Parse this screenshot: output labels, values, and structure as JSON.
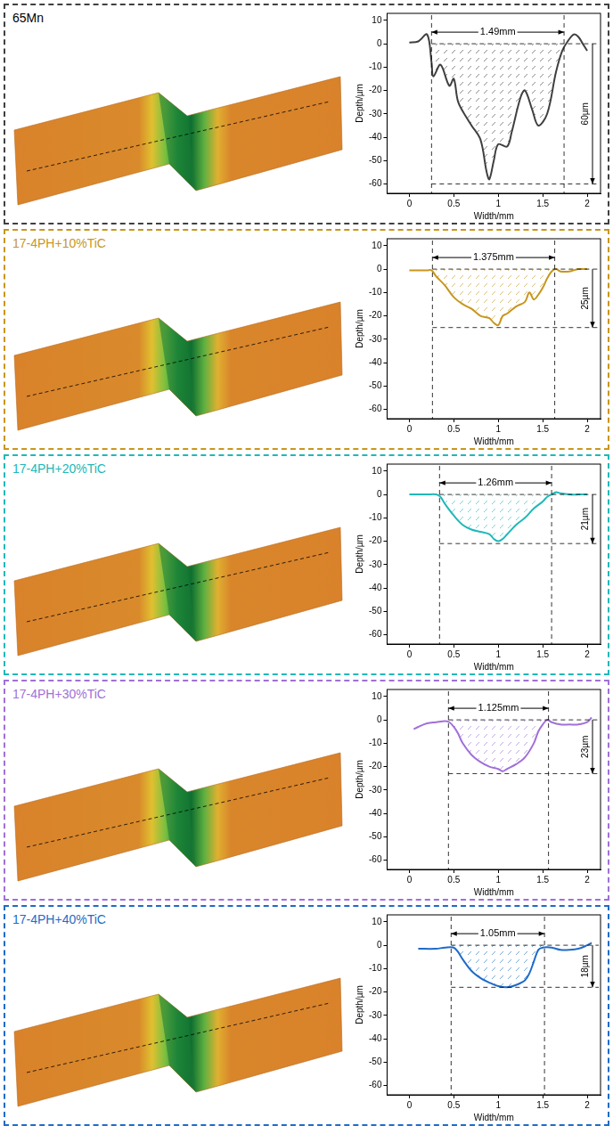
{
  "chart_data": [
    {
      "type": "line",
      "title": "65Mn",
      "color": "#404040",
      "x": [
        0,
        0.1,
        0.2,
        0.25,
        0.27,
        0.35,
        0.45,
        0.5,
        0.55,
        0.65,
        0.7,
        0.8,
        0.87,
        0.9,
        0.95,
        1.0,
        1.1,
        1.15,
        1.25,
        1.3,
        1.38,
        1.45,
        1.55,
        1.65,
        1.72,
        1.78,
        1.85,
        1.9,
        1.95,
        2.0
      ],
      "values": [
        0.5,
        1,
        4,
        -8,
        -14,
        -9,
        -18,
        -15,
        -25,
        -32,
        -35,
        -41,
        -55,
        -58,
        -50,
        -43,
        -44,
        -38,
        -23,
        -20,
        -28,
        -35,
        -30,
        -12,
        -3,
        1,
        4,
        3,
        0,
        -3
      ],
      "xlim": [
        -0.25,
        2.15
      ],
      "ylim": [
        -64,
        13
      ],
      "xticks": [
        0,
        0.5,
        1,
        1.5,
        2
      ],
      "yticks": [
        10,
        0,
        -10,
        -20,
        -30,
        -40,
        -50,
        -60
      ],
      "xlabel": "Width/mm",
      "ylabel": "Depth/µm",
      "annotations": {
        "width": {
          "label": "1.49mm",
          "from": 0.25,
          "to": 1.74
        },
        "depth": {
          "label": "60µm",
          "from": 0,
          "to": -60
        }
      }
    },
    {
      "type": "line",
      "title": "17-4PH+10%TiC",
      "color": "#c8961e",
      "x": [
        0,
        0.1,
        0.2,
        0.25,
        0.3,
        0.4,
        0.5,
        0.6,
        0.7,
        0.8,
        0.9,
        0.95,
        1.0,
        1.05,
        1.1,
        1.2,
        1.3,
        1.35,
        1.4,
        1.45,
        1.5,
        1.55,
        1.6,
        1.65,
        1.7,
        1.8,
        1.9,
        2.0
      ],
      "values": [
        -0.5,
        -0.5,
        -0.5,
        -0.5,
        -3,
        -7,
        -12,
        -15,
        -17,
        -20,
        -21,
        -23,
        -24,
        -20,
        -19,
        -16,
        -14,
        -10,
        -13,
        -11,
        -8,
        -4,
        -1,
        0,
        -1,
        -1,
        0,
        0
      ],
      "xlim": [
        -0.25,
        2.15
      ],
      "ylim": [
        -64,
        13
      ],
      "xticks": [
        0,
        0.5,
        1,
        1.5,
        2
      ],
      "yticks": [
        10,
        0,
        -10,
        -20,
        -30,
        -40,
        -50,
        -60
      ],
      "xlabel": "Width/mm",
      "ylabel": "Depth/µm",
      "annotations": {
        "width": {
          "label": "1.375mm",
          "from": 0.26,
          "to": 1.635
        },
        "depth": {
          "label": "25µm",
          "from": 0,
          "to": -25
        }
      }
    },
    {
      "type": "line",
      "title": "17-4PH+20%TiC",
      "color": "#20b8b8",
      "x": [
        0,
        0.1,
        0.2,
        0.3,
        0.35,
        0.4,
        0.5,
        0.6,
        0.7,
        0.8,
        0.9,
        0.95,
        1.0,
        1.05,
        1.1,
        1.2,
        1.3,
        1.4,
        1.5,
        1.55,
        1.6,
        1.65,
        1.7,
        1.8,
        1.9,
        2.0
      ],
      "values": [
        0,
        0,
        0,
        0,
        -1,
        -4,
        -9,
        -13,
        -15,
        -16,
        -17,
        -19,
        -20,
        -19,
        -17,
        -13,
        -10,
        -6,
        -3,
        -1,
        0,
        1,
        0.5,
        0,
        0,
        0
      ],
      "xlim": [
        -0.25,
        2.15
      ],
      "ylim": [
        -64,
        13
      ],
      "xticks": [
        0,
        0.5,
        1,
        1.5,
        2
      ],
      "yticks": [
        10,
        0,
        -10,
        -20,
        -30,
        -40,
        -50,
        -60
      ],
      "xlabel": "Width/mm",
      "ylabel": "Depth/µm",
      "annotations": {
        "width": {
          "label": "1.26mm",
          "from": 0.34,
          "to": 1.6
        },
        "depth": {
          "label": "21µm",
          "from": 0,
          "to": -21
        }
      }
    },
    {
      "type": "line",
      "title": "17-4PH+30%TiC",
      "color": "#a070d8",
      "x": [
        0.05,
        0.1,
        0.2,
        0.3,
        0.4,
        0.45,
        0.5,
        0.55,
        0.6,
        0.7,
        0.8,
        0.9,
        1.0,
        1.05,
        1.1,
        1.2,
        1.3,
        1.4,
        1.45,
        1.5,
        1.55,
        1.6,
        1.7,
        1.8,
        1.9,
        2.0,
        2.05
      ],
      "values": [
        -4,
        -3,
        -1.5,
        -1,
        -0.5,
        -1,
        -3,
        -6,
        -10,
        -15,
        -18,
        -20,
        -21,
        -22,
        -21,
        -19,
        -16,
        -10,
        -5,
        -2,
        0,
        -1,
        -2,
        -2,
        -2,
        -1,
        1
      ],
      "xlim": [
        -0.25,
        2.15
      ],
      "ylim": [
        -64,
        13
      ],
      "xticks": [
        0,
        0.5,
        1,
        1.5,
        2
      ],
      "yticks": [
        10,
        0,
        -10,
        -20,
        -30,
        -40,
        -50,
        -60
      ],
      "xlabel": "Width/mm",
      "ylabel": "Depth/µm",
      "annotations": {
        "width": {
          "label": "1.125mm",
          "from": 0.44,
          "to": 1.565
        },
        "depth": {
          "label": "23µm",
          "from": 0,
          "to": -23
        }
      }
    },
    {
      "type": "line",
      "title": "17-4PH+40%TiC",
      "color": "#1e6bc8",
      "x": [
        0.1,
        0.3,
        0.4,
        0.5,
        0.55,
        0.6,
        0.7,
        0.8,
        0.9,
        1.0,
        1.1,
        1.2,
        1.3,
        1.35,
        1.4,
        1.45,
        1.5,
        1.6,
        1.7,
        1.8,
        1.9,
        2.0,
        2.05
      ],
      "values": [
        -1.5,
        -1.5,
        -1,
        -1,
        -3,
        -6,
        -11,
        -14,
        -16,
        -17.5,
        -18,
        -17,
        -15,
        -12,
        -7,
        -2,
        -1,
        -1,
        -2,
        -2,
        -1.5,
        0,
        1
      ],
      "xlim": [
        -0.25,
        2.15
      ],
      "ylim": [
        -64,
        13
      ],
      "xticks": [
        0,
        0.5,
        1,
        1.5,
        2
      ],
      "yticks": [
        10,
        0,
        -10,
        -20,
        -30,
        -40,
        -50,
        -60
      ],
      "xlabel": "Width/mm",
      "ylabel": "Depth/µm",
      "annotations": {
        "width": {
          "label": "1.05mm",
          "from": 0.47,
          "to": 1.52
        },
        "depth": {
          "label": "18µm",
          "from": 0,
          "to": -18
        }
      }
    }
  ]
}
